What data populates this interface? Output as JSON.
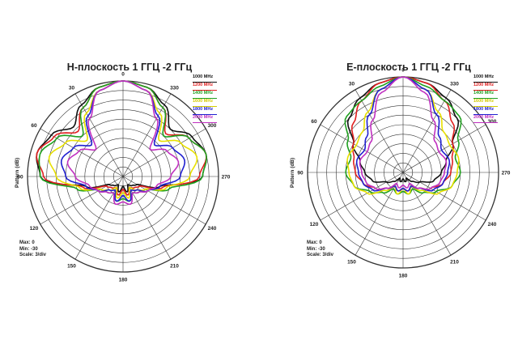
{
  "chart_data": [
    {
      "type": "polar-line",
      "title": "H-плоскость 1 ГГЦ -2 ГГц",
      "ylabel": "Pattern (dB)",
      "stats": {
        "max": "Max: 0",
        "min": "Min: -30",
        "scale": "Scale: 3/div"
      },
      "r_range": [
        -30,
        0
      ],
      "angle_labels": [
        "0",
        "30",
        "60",
        "90",
        "120",
        "150",
        "180",
        "210",
        "240",
        "270",
        "300",
        "330"
      ],
      "legend": [
        {
          "label": "1000 MHz",
          "color": "#111111"
        },
        {
          "label": "1200 MHz",
          "color": "#e02020"
        },
        {
          "label": "1400 MHz",
          "color": "#20a020"
        },
        {
          "label": "1600 MHz",
          "color": "#e8e000"
        },
        {
          "label": "1800 MHz",
          "color": "#2020d0"
        },
        {
          "label": "2000 MHz",
          "color": "#c030c0"
        }
      ],
      "series": [
        {
          "name": "1000 MHz",
          "color": "#111111",
          "angles": [
            0,
            15,
            30,
            45,
            60,
            75,
            90,
            105,
            120,
            135,
            150,
            165,
            180,
            195,
            210,
            225,
            240,
            255,
            270,
            285,
            300,
            315,
            330,
            345
          ],
          "values": [
            0,
            -1,
            -4,
            -8,
            -4,
            -2,
            -4,
            -18,
            -25,
            -26,
            -27,
            -25,
            -27,
            -25,
            -27,
            -26,
            -25,
            -18,
            -5,
            -3,
            -5,
            -9,
            -4,
            -1
          ]
        },
        {
          "name": "1200 MHz",
          "color": "#e02020",
          "angles": [
            0,
            15,
            30,
            45,
            60,
            75,
            90,
            105,
            120,
            135,
            150,
            165,
            180,
            195,
            210,
            225,
            240,
            255,
            270,
            285,
            300,
            315,
            330,
            345
          ],
          "values": [
            0,
            -1,
            -5,
            -10,
            -5,
            -2,
            -5,
            -17,
            -24,
            -25,
            -26,
            -24,
            -26,
            -24,
            -26,
            -25,
            -24,
            -17,
            -6,
            -3,
            -6,
            -11,
            -5,
            -1
          ]
        },
        {
          "name": "1400 MHz",
          "color": "#20a020",
          "angles": [
            0,
            15,
            30,
            45,
            60,
            75,
            90,
            105,
            120,
            135,
            150,
            165,
            180,
            195,
            210,
            225,
            240,
            255,
            270,
            285,
            300,
            315,
            330,
            345
          ],
          "values": [
            0,
            -1,
            -5,
            -12,
            -6,
            -3,
            -4,
            -15,
            -22,
            -23,
            -24,
            -22,
            -23,
            -22,
            -24,
            -23,
            -22,
            -15,
            -5,
            -3,
            -6,
            -12,
            -5,
            -1
          ]
        },
        {
          "name": "1600 MHz",
          "color": "#e8e000",
          "angles": [
            0,
            15,
            30,
            45,
            60,
            75,
            90,
            105,
            120,
            135,
            150,
            165,
            180,
            195,
            210,
            225,
            240,
            255,
            270,
            285,
            300,
            315,
            330,
            345
          ],
          "values": [
            0,
            -2,
            -7,
            -14,
            -9,
            -6,
            -9,
            -16,
            -22,
            -24,
            -26,
            -23,
            -25,
            -23,
            -26,
            -24,
            -22,
            -16,
            -9,
            -6,
            -9,
            -14,
            -7,
            -2
          ]
        },
        {
          "name": "1800 MHz",
          "color": "#2020d0",
          "angles": [
            0,
            15,
            30,
            45,
            60,
            75,
            90,
            105,
            120,
            135,
            150,
            165,
            180,
            195,
            210,
            225,
            240,
            255,
            270,
            285,
            300,
            315,
            330,
            345
          ],
          "values": [
            0,
            -2,
            -8,
            -16,
            -12,
            -10,
            -12,
            -18,
            -21,
            -24,
            -25,
            -22,
            -24,
            -22,
            -25,
            -24,
            -21,
            -18,
            -12,
            -10,
            -12,
            -16,
            -8,
            -2
          ]
        },
        {
          "name": "2000 MHz",
          "color": "#c030c0",
          "angles": [
            0,
            15,
            30,
            45,
            60,
            75,
            90,
            105,
            120,
            135,
            150,
            165,
            180,
            195,
            210,
            225,
            240,
            255,
            270,
            285,
            300,
            315,
            330,
            345
          ],
          "values": [
            0,
            -2,
            -9,
            -18,
            -14,
            -12,
            -15,
            -19,
            -21,
            -23,
            -24,
            -21,
            -22,
            -21,
            -24,
            -23,
            -21,
            -19,
            -15,
            -12,
            -14,
            -18,
            -9,
            -2
          ]
        }
      ]
    },
    {
      "type": "polar-line",
      "title": "Е-плоскость 1 ГГЦ -2 ГГц",
      "ylabel": "Pattern (dB)",
      "stats": {
        "max": "Max: 0",
        "min": "Min: -30",
        "scale": "Scale: 3/div"
      },
      "r_range": [
        -30,
        0
      ],
      "angle_labels": [
        "0",
        "30",
        "60",
        "90",
        "120",
        "150",
        "180",
        "210",
        "240",
        "270",
        "300",
        "330"
      ],
      "legend": [
        {
          "label": "1000 MHz",
          "color": "#111111"
        },
        {
          "label": "1200 MHz",
          "color": "#e02020"
        },
        {
          "label": "1400 MHz",
          "color": "#20a020"
        },
        {
          "label": "1600 MHz",
          "color": "#e8e000"
        },
        {
          "label": "1800 MHz",
          "color": "#2020d0"
        },
        {
          "label": "2000 MHz",
          "color": "#c030c0"
        }
      ],
      "series": [
        {
          "name": "1000 MHz",
          "color": "#111111",
          "angles": [
            0,
            15,
            30,
            45,
            60,
            75,
            90,
            105,
            120,
            135,
            150,
            165,
            180,
            195,
            210,
            225,
            240,
            255,
            270,
            285,
            300,
            315,
            330,
            345
          ],
          "values": [
            0,
            -1,
            -3,
            -6,
            -12,
            -16,
            -18,
            -20,
            -24,
            -26,
            -28,
            -27,
            -28,
            -27,
            -28,
            -26,
            -24,
            -20,
            -18,
            -16,
            -12,
            -6,
            -3,
            -1
          ]
        },
        {
          "name": "1200 MHz",
          "color": "#e02020",
          "angles": [
            0,
            15,
            30,
            45,
            60,
            75,
            90,
            105,
            120,
            135,
            150,
            165,
            180,
            195,
            210,
            225,
            240,
            255,
            270,
            285,
            300,
            315,
            330,
            345
          ],
          "values": [
            0,
            -1,
            -4,
            -8,
            -12,
            -14,
            -15,
            -17,
            -20,
            -23,
            -25,
            -24,
            -25,
            -24,
            -25,
            -23,
            -20,
            -17,
            -15,
            -14,
            -12,
            -8,
            -4,
            -1
          ]
        },
        {
          "name": "1400 MHz",
          "color": "#20a020",
          "angles": [
            0,
            15,
            30,
            45,
            60,
            75,
            90,
            105,
            120,
            135,
            150,
            165,
            180,
            195,
            210,
            225,
            240,
            255,
            270,
            285,
            300,
            315,
            330,
            345
          ],
          "values": [
            0,
            -2,
            -4,
            -5,
            -10,
            -13,
            -12,
            -14,
            -18,
            -21,
            -24,
            -23,
            -24,
            -23,
            -24,
            -21,
            -18,
            -14,
            -12,
            -13,
            -10,
            -5,
            -4,
            -2
          ]
        },
        {
          "name": "1600 MHz",
          "color": "#e8e000",
          "angles": [
            0,
            15,
            30,
            45,
            60,
            75,
            90,
            105,
            120,
            135,
            150,
            165,
            180,
            195,
            210,
            225,
            240,
            255,
            270,
            285,
            300,
            315,
            330,
            345
          ],
          "values": [
            0,
            -3,
            -8,
            -12,
            -13,
            -12,
            -13,
            -14,
            -17,
            -22,
            -25,
            -23,
            -25,
            -23,
            -25,
            -22,
            -17,
            -14,
            -13,
            -12,
            -13,
            -12,
            -8,
            -3
          ]
        },
        {
          "name": "1800 MHz",
          "color": "#2020d0",
          "angles": [
            0,
            15,
            30,
            45,
            60,
            75,
            90,
            105,
            120,
            135,
            150,
            165,
            180,
            195,
            210,
            225,
            240,
            255,
            270,
            285,
            300,
            315,
            330,
            345
          ],
          "values": [
            0,
            -3,
            -9,
            -14,
            -16,
            -15,
            -16,
            -17,
            -19,
            -23,
            -25,
            -24,
            -25,
            -24,
            -25,
            -23,
            -19,
            -17,
            -16,
            -15,
            -16,
            -14,
            -9,
            -3
          ]
        },
        {
          "name": "2000 MHz",
          "color": "#c030c0",
          "angles": [
            0,
            15,
            30,
            45,
            60,
            75,
            90,
            105,
            120,
            135,
            150,
            165,
            180,
            195,
            210,
            225,
            240,
            255,
            270,
            285,
            300,
            315,
            330,
            345
          ],
          "values": [
            0,
            -4,
            -11,
            -16,
            -17,
            -16,
            -17,
            -18,
            -20,
            -23,
            -26,
            -25,
            -26,
            -25,
            -26,
            -23,
            -20,
            -18,
            -17,
            -16,
            -17,
            -16,
            -11,
            -4
          ]
        }
      ]
    }
  ]
}
